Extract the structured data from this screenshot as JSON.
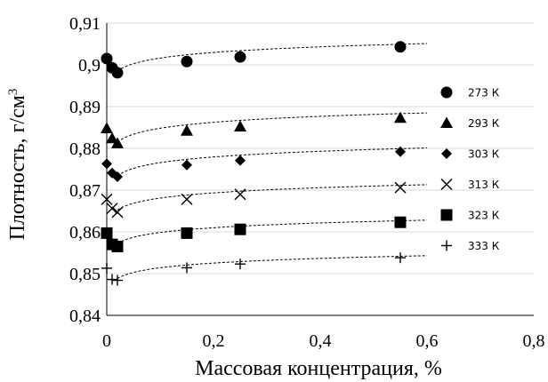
{
  "chart_data": {
    "type": "scatter",
    "title": "",
    "xlabel": "Массовая концентрация, %",
    "ylabel": "Плотность, г/см3",
    "ylabel_base": "Плотность, г/см",
    "ylabel_sup": "3",
    "xlim": [
      0,
      0.8
    ],
    "ylim": [
      0.84,
      0.91
    ],
    "xticks": [
      0,
      0.2,
      0.4,
      0.6,
      0.8
    ],
    "xtick_labels": [
      "0",
      "0,2",
      "0,4",
      "0,6",
      "0,8"
    ],
    "yticks": [
      0.84,
      0.85,
      0.86,
      0.87,
      0.88,
      0.89,
      0.9,
      0.91
    ],
    "ytick_labels": [
      "0,84",
      "0,85",
      "0,86",
      "0,87",
      "0,88",
      "0,89",
      "0,9",
      "0,91"
    ],
    "grid": "horizontal",
    "legend_position": "right",
    "trendline": "dashed logarithmic",
    "series": [
      {
        "name": "273 К",
        "marker": "circle",
        "x": [
          0.0,
          0.01,
          0.02,
          0.15,
          0.25,
          0.55
        ],
        "y": [
          0.9015,
          0.8993,
          0.8981,
          0.9008,
          0.9019,
          0.9043
        ],
        "trend_y": [
          0.8985,
          0.9051
        ]
      },
      {
        "name": "293 К",
        "marker": "triangle",
        "x": [
          0.0,
          0.01,
          0.02,
          0.15,
          0.25,
          0.55
        ],
        "y": [
          0.8848,
          0.8824,
          0.8812,
          0.8842,
          0.8852,
          0.8873
        ],
        "trend_y": [
          0.8815,
          0.8885
        ]
      },
      {
        "name": "303 К",
        "marker": "diamond",
        "x": [
          0.0,
          0.01,
          0.02,
          0.15,
          0.25,
          0.55
        ],
        "y": [
          0.8763,
          0.8741,
          0.8732,
          0.876,
          0.8771,
          0.8792
        ],
        "trend_y": [
          0.8734,
          0.8801
        ]
      },
      {
        "name": "313 К",
        "marker": "x",
        "x": [
          0.0,
          0.01,
          0.02,
          0.15,
          0.25,
          0.55
        ],
        "y": [
          0.8678,
          0.8656,
          0.8647,
          0.8678,
          0.869,
          0.8706
        ],
        "trend_y": [
          0.8652,
          0.8713
        ]
      },
      {
        "name": "323 К",
        "marker": "square",
        "x": [
          0.0,
          0.01,
          0.02,
          0.15,
          0.25,
          0.55
        ],
        "y": [
          0.8597,
          0.857,
          0.8565,
          0.8597,
          0.8606,
          0.8623
        ],
        "trend_y": [
          0.8572,
          0.8628
        ]
      },
      {
        "name": "333 К",
        "marker": "plus",
        "x": [
          0.0,
          0.01,
          0.02,
          0.15,
          0.25,
          0.55
        ],
        "y": [
          0.8513,
          0.8486,
          0.8484,
          0.8514,
          0.8523,
          0.8538
        ],
        "trend_y": [
          0.8488,
          0.8543
        ]
      }
    ]
  }
}
